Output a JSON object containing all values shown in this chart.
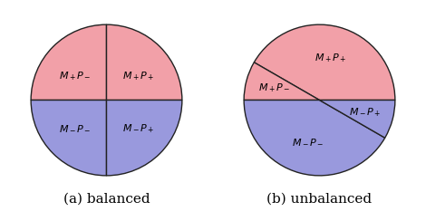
{
  "pink_color": "#F2A0A8",
  "blue_color": "#9999DD",
  "edge_color": "#222222",
  "background": "#ffffff",
  "balanced_labels": [
    "$M_+P_-$",
    "$M_+P_+$",
    "$M_-P_-$",
    "$M_-P_+$"
  ],
  "unbalanced_labels": [
    "$M_+P_-$",
    "$M_+P_+$",
    "$M_-P_-$",
    "$M_-P_+$"
  ],
  "caption_balanced": "(a) balanced",
  "caption_unbalanced": "(b) unbalanced",
  "caption_fontsize": 11,
  "label_fontsize": 8,
  "unbal_angles": [
    0,
    150,
    180,
    330,
    360
  ]
}
